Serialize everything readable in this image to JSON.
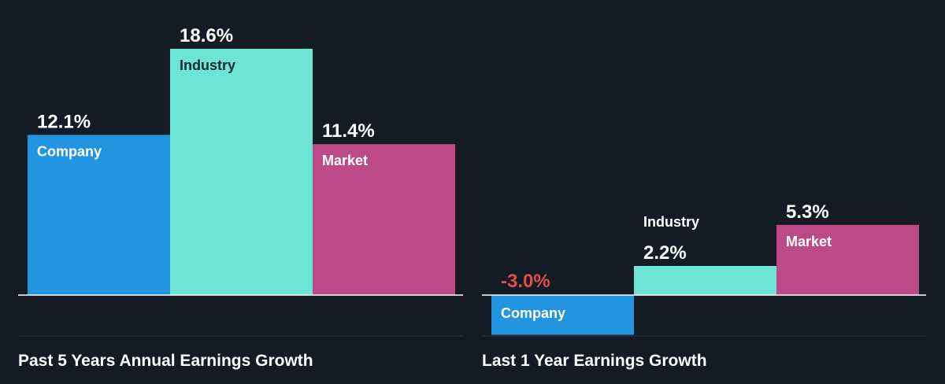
{
  "colors": {
    "background": "#151b24",
    "company": "#2394df",
    "industry": "#6ee5d4",
    "market": "#bc4a87",
    "negative_label": "#e04d4d",
    "label_text": "#ffffff",
    "dark_label_text": "#1b2a33",
    "axis": "#ffffff",
    "divider": "#2c3540"
  },
  "chart_data": [
    {
      "type": "bar",
      "title": "Past 5 Years Annual Earnings Growth",
      "categories": [
        "Company",
        "Industry",
        "Market"
      ],
      "values": [
        12.1,
        18.6,
        11.4
      ],
      "value_labels": [
        "12.1%",
        "18.6%",
        "11.4%"
      ],
      "ylim": [
        -3.0,
        18.6
      ]
    },
    {
      "type": "bar",
      "title": "Last 1 Year Earnings Growth",
      "categories": [
        "Company",
        "Industry",
        "Market"
      ],
      "values": [
        -3.0,
        2.2,
        5.3
      ],
      "value_labels": [
        "-3.0%",
        "2.2%",
        "5.3%"
      ],
      "ylim": [
        -3.0,
        18.6
      ]
    }
  ]
}
